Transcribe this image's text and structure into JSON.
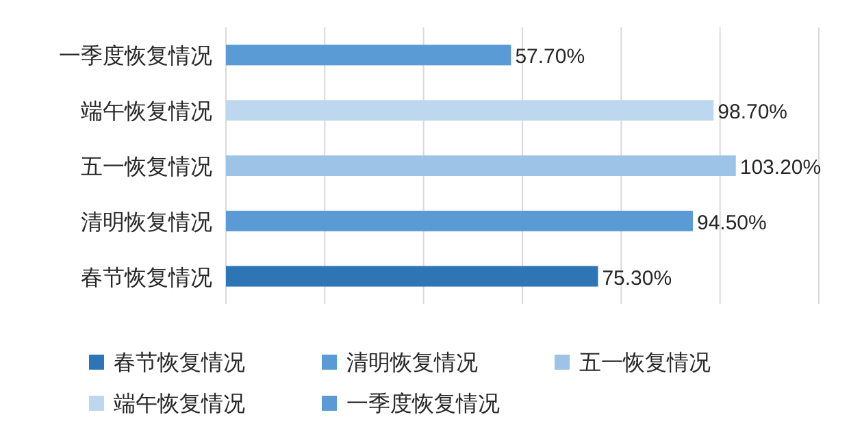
{
  "chart_data": {
    "type": "bar",
    "orientation": "horizontal",
    "categories": [
      "一季度恢复情况",
      "端午恢复情况",
      "五一恢复情况",
      "清明恢复情况",
      "春节恢复情况"
    ],
    "series": [
      {
        "name": "春节恢复情况",
        "color": "#2e75b6",
        "values": [
          null,
          null,
          null,
          null,
          75.3
        ],
        "value_labels": [
          null,
          null,
          null,
          null,
          "75.30%"
        ]
      },
      {
        "name": "清明恢复情况",
        "color": "#5b9bd5",
        "values": [
          null,
          null,
          null,
          94.5,
          null
        ],
        "value_labels": [
          null,
          null,
          null,
          "94.50%",
          null
        ]
      },
      {
        "name": "五一恢复情况",
        "color": "#9dc3e6",
        "values": [
          null,
          null,
          103.2,
          null,
          null
        ],
        "value_labels": [
          null,
          null,
          "103.20%",
          null,
          null
        ]
      },
      {
        "name": "端午恢复情况",
        "color": "#bdd7ee",
        "values": [
          null,
          98.7,
          null,
          null,
          null
        ],
        "value_labels": [
          null,
          "98.70%",
          null,
          null,
          null
        ]
      },
      {
        "name": "一季度恢复情况",
        "color": "#5b9bd5",
        "values": [
          57.7,
          null,
          null,
          null,
          null
        ],
        "value_labels": [
          "57.70%",
          null,
          null,
          null,
          null
        ]
      }
    ],
    "xlim": [
      0,
      120
    ],
    "xticks": [
      {
        "value": 0,
        "label": null
      },
      {
        "value": 20,
        "label": null
      },
      {
        "value": 40,
        "label": null
      },
      {
        "value": 60,
        "label": null
      },
      {
        "value": 80,
        "label": null
      },
      {
        "value": 100,
        "label": null
      },
      {
        "value": 120,
        "label": null
      }
    ],
    "grid": "x",
    "tick_labels": "y",
    "legend": "bottom"
  }
}
